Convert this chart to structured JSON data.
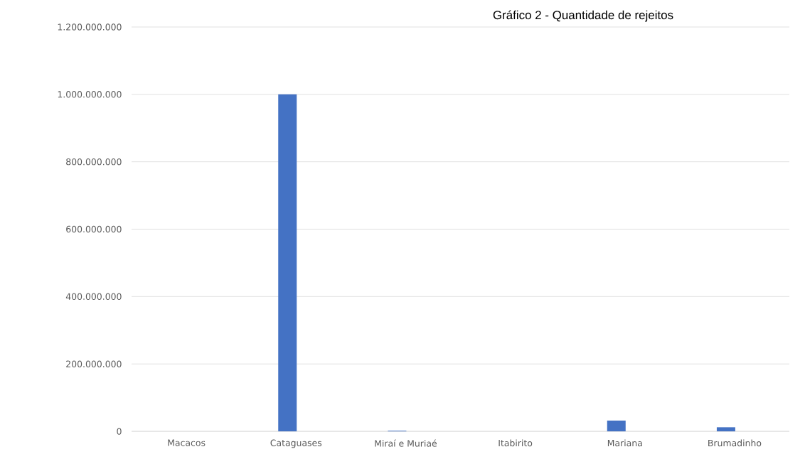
{
  "chart_data": {
    "type": "bar",
    "title": "Gráfico 2 - Quantidade de rejeitos",
    "categories": [
      "Macacos",
      "Cataguases",
      "Miraí e Muriaé",
      "Itabirito",
      "Mariana",
      "Brumadinho"
    ],
    "values": [
      0,
      1000000000,
      2000000,
      0,
      32000000,
      12000000
    ],
    "color": "#4472c4",
    "ylim": [
      0,
      1200000000
    ],
    "yticks": [
      {
        "value": 0,
        "label": "0"
      },
      {
        "value": 200000000,
        "label": "200.000.000"
      },
      {
        "value": 400000000,
        "label": "400.000.000"
      },
      {
        "value": 600000000,
        "label": "600.000.000"
      },
      {
        "value": 800000000,
        "label": "800.000.000"
      },
      {
        "value": 1000000000,
        "label": "1.000.000.000"
      },
      {
        "value": 1200000000,
        "label": "1.200.000.000"
      }
    ],
    "grid": "y"
  }
}
